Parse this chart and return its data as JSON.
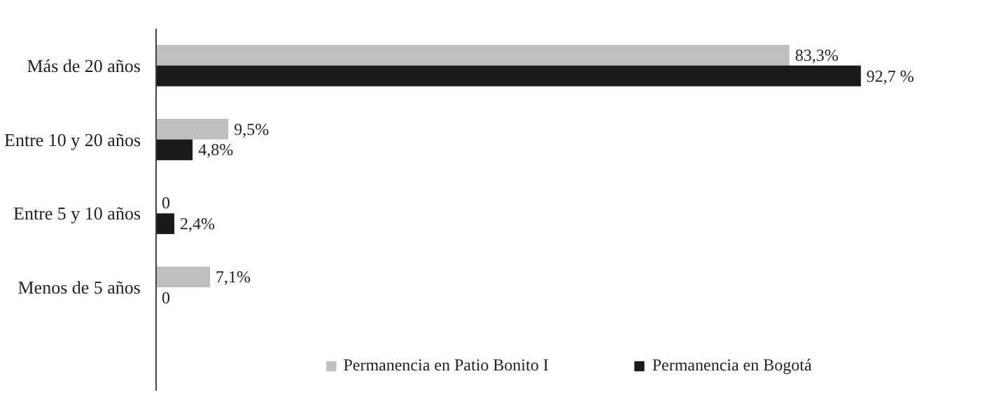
{
  "chart_data": {
    "type": "bar",
    "orientation": "horizontal",
    "categories": [
      "Más de 20 años",
      "Entre 10 y 20 años",
      "Entre 5 y 10 años",
      "Menos de 5 años"
    ],
    "series": [
      {
        "name": "Permanencia en Patio Bonito I",
        "color": "#bfbfbf",
        "values": [
          83.3,
          9.5,
          0,
          7.1
        ],
        "value_labels": [
          "83,3%",
          "9,5%",
          "0",
          "7,1%"
        ]
      },
      {
        "name": "Permanencia en Bogotá",
        "color": "#1a1a1a",
        "values": [
          92.7,
          4.8,
          2.4,
          0
        ],
        "value_labels": [
          "92,7 %",
          "4,8%",
          "2,4%",
          "0"
        ]
      }
    ],
    "legend": "bottom"
  }
}
